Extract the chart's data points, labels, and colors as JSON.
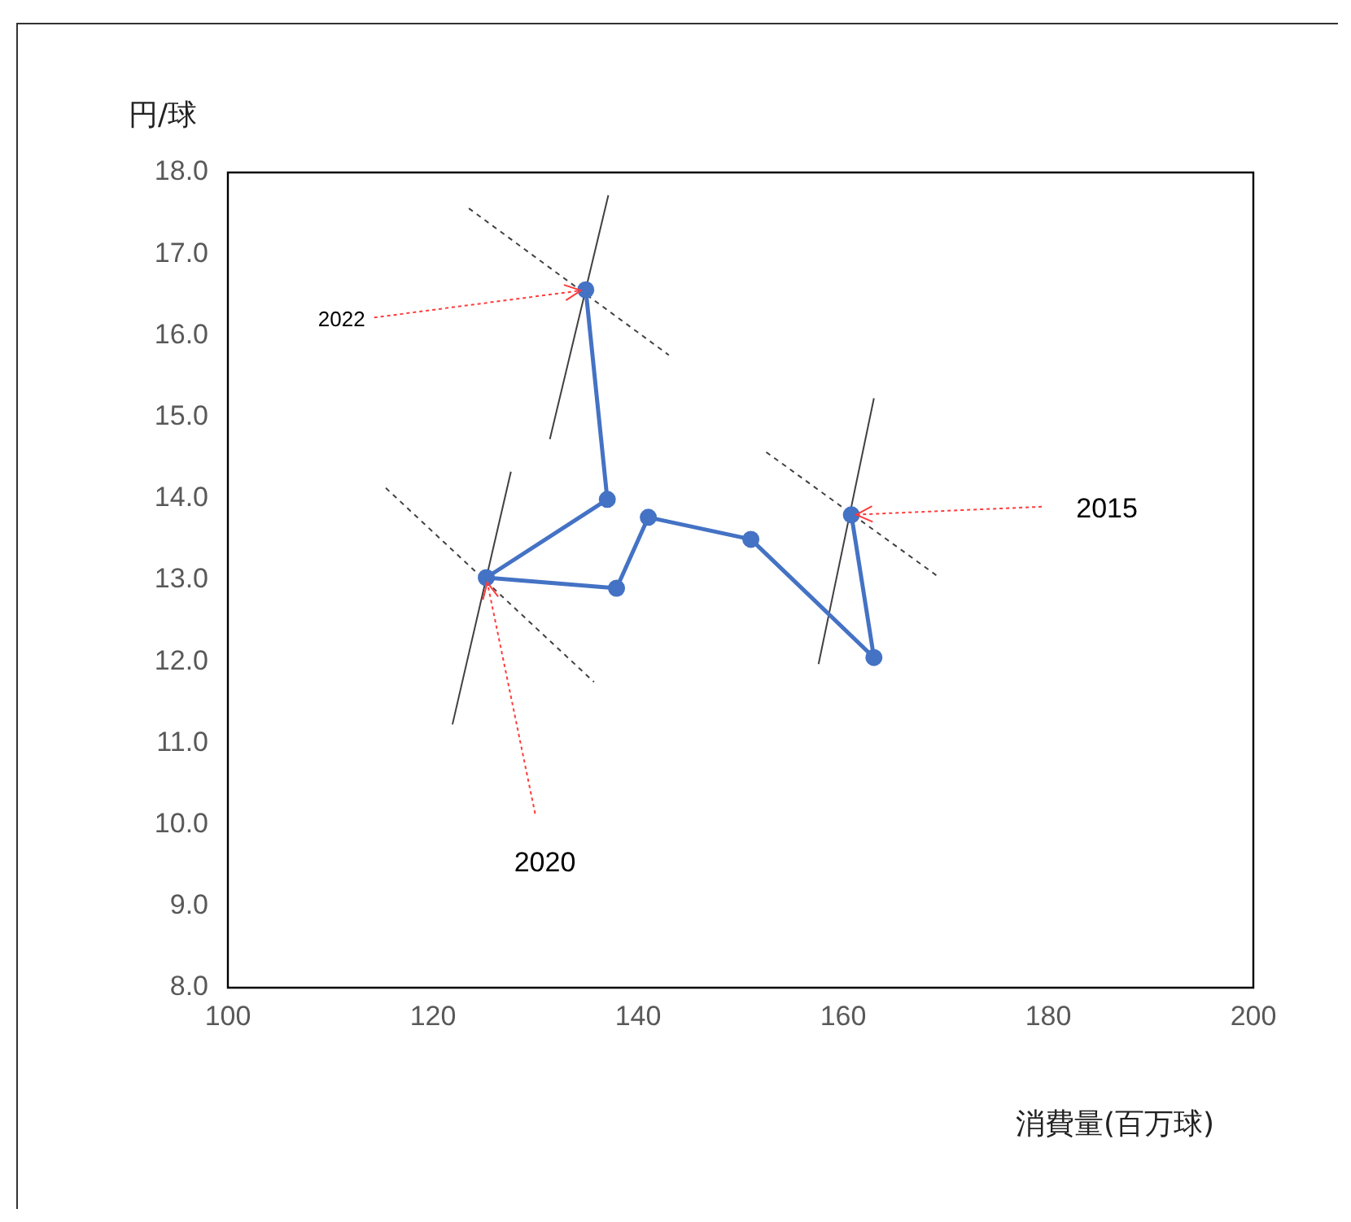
{
  "chart_data": {
    "type": "line",
    "xlabel": "消費量(百万球)",
    "ylabel": "円/球",
    "xlim": [
      100,
      200
    ],
    "xticks": [
      100,
      120,
      140,
      160,
      180,
      200
    ],
    "ylim": [
      8,
      18
    ],
    "yticks": [
      {
        "value": 8,
        "label": "8.0"
      },
      {
        "value": 9,
        "label": "9.0"
      },
      {
        "value": 10,
        "label": "10.0"
      },
      {
        "value": 11,
        "label": "11.0"
      },
      {
        "value": 12,
        "label": "12.0"
      },
      {
        "value": 13,
        "label": "13.0"
      },
      {
        "value": 14,
        "label": "14.0"
      },
      {
        "value": 15,
        "label": "15.0"
      },
      {
        "value": 16,
        "label": "16.0"
      },
      {
        "value": 17,
        "label": "17.0"
      },
      {
        "value": 18,
        "label": "18.0"
      }
    ],
    "grid": false,
    "legend": false,
    "marker": "circle",
    "line_style": "solid",
    "series": [
      {
        "color": "#4472c4",
        "x": [
          160.8,
          163.0,
          151.0,
          141.0,
          137.9,
          125.2,
          137.0,
          134.9
        ],
        "values": [
          13.8,
          12.05,
          13.5,
          13.77,
          12.9,
          13.03,
          13.99,
          16.56
        ]
      },
      {
        "type": "line",
        "color": "#404040",
        "marker": "none",
        "x": [
          131.4,
          137.1
        ],
        "values": [
          14.73,
          17.72
        ]
      },
      {
        "type": "line",
        "color": "#404040",
        "marker": "none",
        "line_style": "dotted",
        "x": [
          123.5,
          143.0
        ],
        "values": [
          17.56,
          15.76
        ]
      },
      {
        "type": "line",
        "color": "#404040",
        "marker": "none",
        "x": [
          121.9,
          127.6
        ],
        "values": [
          11.23,
          14.33
        ]
      },
      {
        "type": "line",
        "color": "#404040",
        "marker": "none",
        "line_style": "dotted",
        "x": [
          115.4,
          135.7
        ],
        "values": [
          14.13,
          11.75
        ]
      },
      {
        "type": "line",
        "color": "#404040",
        "marker": "none",
        "x": [
          157.6,
          163.0
        ],
        "values": [
          11.97,
          15.23
        ]
      },
      {
        "type": "line",
        "color": "#404040",
        "marker": "none",
        "line_style": "dotted",
        "x": [
          152.5,
          169.4
        ],
        "values": [
          14.57,
          13.03
        ]
      }
    ],
    "annotations": [
      {
        "text": "2015",
        "x": 160.8,
        "y": 13.8
      },
      {
        "text": "2020",
        "x": 125.2,
        "y": 13.03
      },
      {
        "text": "2022",
        "x": 134.9,
        "y": 16.56
      }
    ]
  }
}
